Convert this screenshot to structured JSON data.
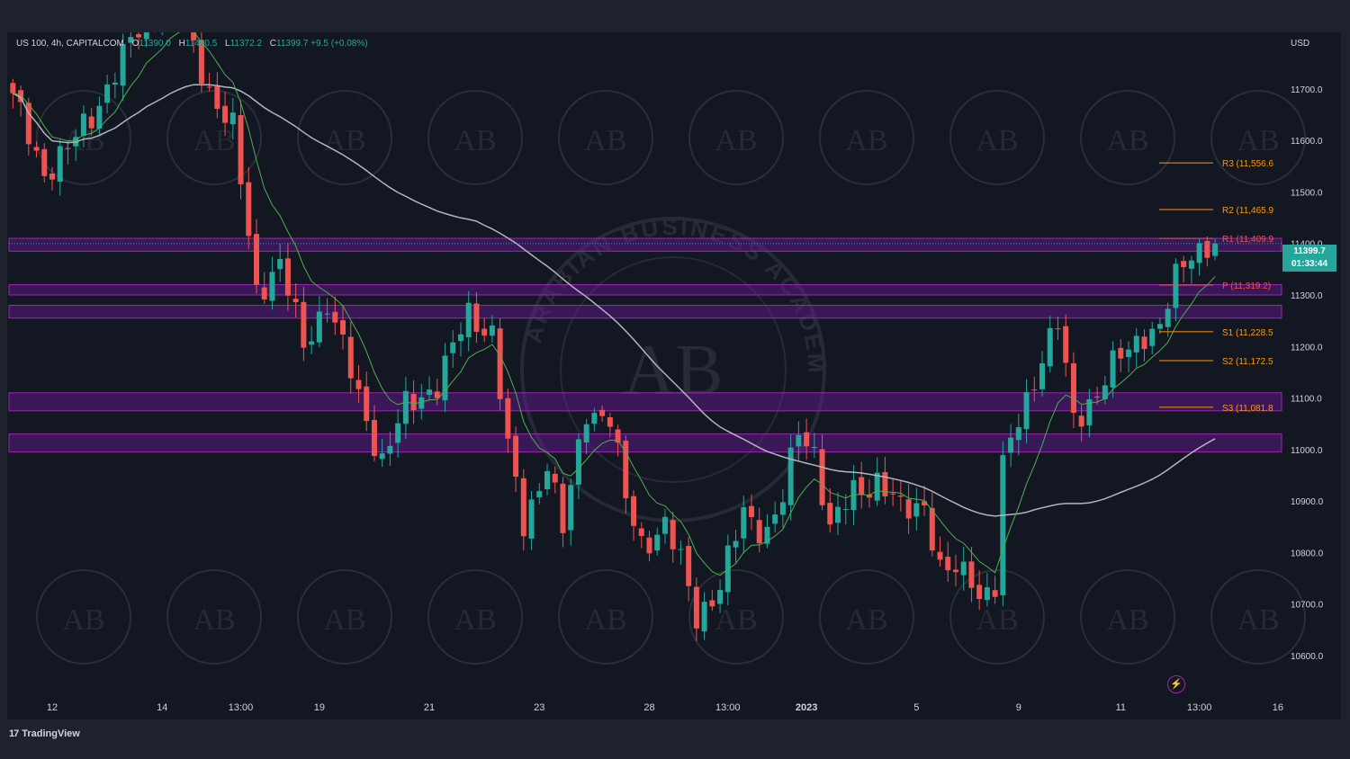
{
  "legend": {
    "symbol": "US 100, 4h, CAPITALCOM",
    "open_label": "O",
    "open": "11390.0",
    "high_label": "H",
    "high": "11400.5",
    "low_label": "L",
    "low": "11372.2",
    "close_label": "C",
    "close": "11399.7",
    "change": "+9.5 (+0.08%)"
  },
  "currency": "USD",
  "last_price": {
    "price": "11399.7",
    "countdown": "01:33:44"
  },
  "footer": {
    "brand": "TradingView",
    "logo_glyph": "17"
  },
  "watermark": {
    "center_text": "AB",
    "center_ring_text": "ARABIAN BUSINESS ACADEMY"
  },
  "colors": {
    "background": "#131722",
    "outer": "#1e222d",
    "bull": "#26a69a",
    "bear": "#ef5350",
    "ema_fast": "#4caf50",
    "sma_slow": "#b2b5be",
    "zone": "#6a1b9a",
    "pivot_label": "#ff9800"
  },
  "chart_data": {
    "type": "candlestick",
    "interval": "4h",
    "y_axis": {
      "ticks": [
        11700,
        11600,
        11500,
        11400,
        11300,
        11200,
        11100,
        11000,
        10900,
        10800,
        10700,
        10600
      ],
      "tick_labels": [
        "11700.0",
        "11600.0",
        "11500.0",
        "11400.0",
        "11300.0",
        "11200.0",
        "11100.0",
        "11000.0",
        "10900.0",
        "10800.0",
        "10700.0",
        "10600.0"
      ],
      "ylim": [
        10535,
        11810
      ]
    },
    "x_axis": {
      "tick_labels": [
        "12",
        "14",
        "13:00",
        "19",
        "21",
        "23",
        "28",
        "13:00",
        "2023",
        "5",
        "9",
        "11",
        "13:00",
        "16"
      ],
      "tick_bar_index": [
        5,
        19,
        29,
        39,
        53,
        67,
        81,
        91,
        101,
        115,
        128,
        141,
        151,
        161
      ]
    },
    "pivot_levels": [
      {
        "label": "R3",
        "text": "R3 (11,556.6",
        "value": 11556.6
      },
      {
        "label": "R2",
        "text": "R2 (11,465.9",
        "value": 11465.9
      },
      {
        "label": "R1",
        "text": "R1 (11,409.9",
        "value": 11409.9
      },
      {
        "label": "P",
        "text": "P (11,319.2)",
        "value": 11319.2
      },
      {
        "label": "S1",
        "text": "S1 (11,228.5",
        "value": 11228.5
      },
      {
        "label": "S2",
        "text": "S2 (11,172.5",
        "value": 11172.5
      },
      {
        "label": "S3",
        "text": "S3 (11,081.8",
        "value": 11081.8
      }
    ],
    "zones": [
      {
        "low": 11385,
        "high": 11410
      },
      {
        "low": 11300,
        "high": 11320
      },
      {
        "low": 11255,
        "high": 11280
      },
      {
        "low": 11075,
        "high": 11110
      },
      {
        "low": 10995,
        "high": 11030
      }
    ],
    "close_path_anchors": [
      [
        0,
        11680
      ],
      [
        4,
        11540
      ],
      [
        7,
        11580
      ],
      [
        10,
        11650
      ],
      [
        14,
        11760
      ],
      [
        17,
        11840
      ],
      [
        21,
        11860
      ],
      [
        25,
        11700
      ],
      [
        28,
        11620
      ],
      [
        31,
        11310
      ],
      [
        34,
        11360
      ],
      [
        37,
        11200
      ],
      [
        40,
        11290
      ],
      [
        44,
        11100
      ],
      [
        47,
        10980
      ],
      [
        50,
        11080
      ],
      [
        54,
        11130
      ],
      [
        58,
        11260
      ],
      [
        61,
        11230
      ],
      [
        63,
        11000
      ],
      [
        65,
        10850
      ],
      [
        68,
        10980
      ],
      [
        70,
        10840
      ],
      [
        73,
        11080
      ],
      [
        76,
        11060
      ],
      [
        78,
        10900
      ],
      [
        80,
        10820
      ],
      [
        83,
        10850
      ],
      [
        85,
        10780
      ],
      [
        87,
        10680
      ],
      [
        90,
        10730
      ],
      [
        93,
        10880
      ],
      [
        96,
        10840
      ],
      [
        98,
        10900
      ],
      [
        100,
        11040
      ],
      [
        102,
        11000
      ],
      [
        104,
        10840
      ],
      [
        107,
        10920
      ],
      [
        110,
        10940
      ],
      [
        113,
        10880
      ],
      [
        116,
        10900
      ],
      [
        118,
        10760
      ],
      [
        120,
        10760
      ],
      [
        122,
        10760
      ],
      [
        123,
        10720
      ],
      [
        125,
        10730
      ],
      [
        126,
        10960
      ],
      [
        128,
        11060
      ],
      [
        131,
        11180
      ],
      [
        133,
        11240
      ],
      [
        135,
        11060
      ],
      [
        138,
        11110
      ],
      [
        141,
        11180
      ],
      [
        144,
        11230
      ],
      [
        146,
        11230
      ],
      [
        148,
        11330
      ],
      [
        150,
        11390
      ],
      [
        152,
        11395
      ],
      [
        153,
        11399.7
      ]
    ],
    "last_close": 11399.7
  }
}
